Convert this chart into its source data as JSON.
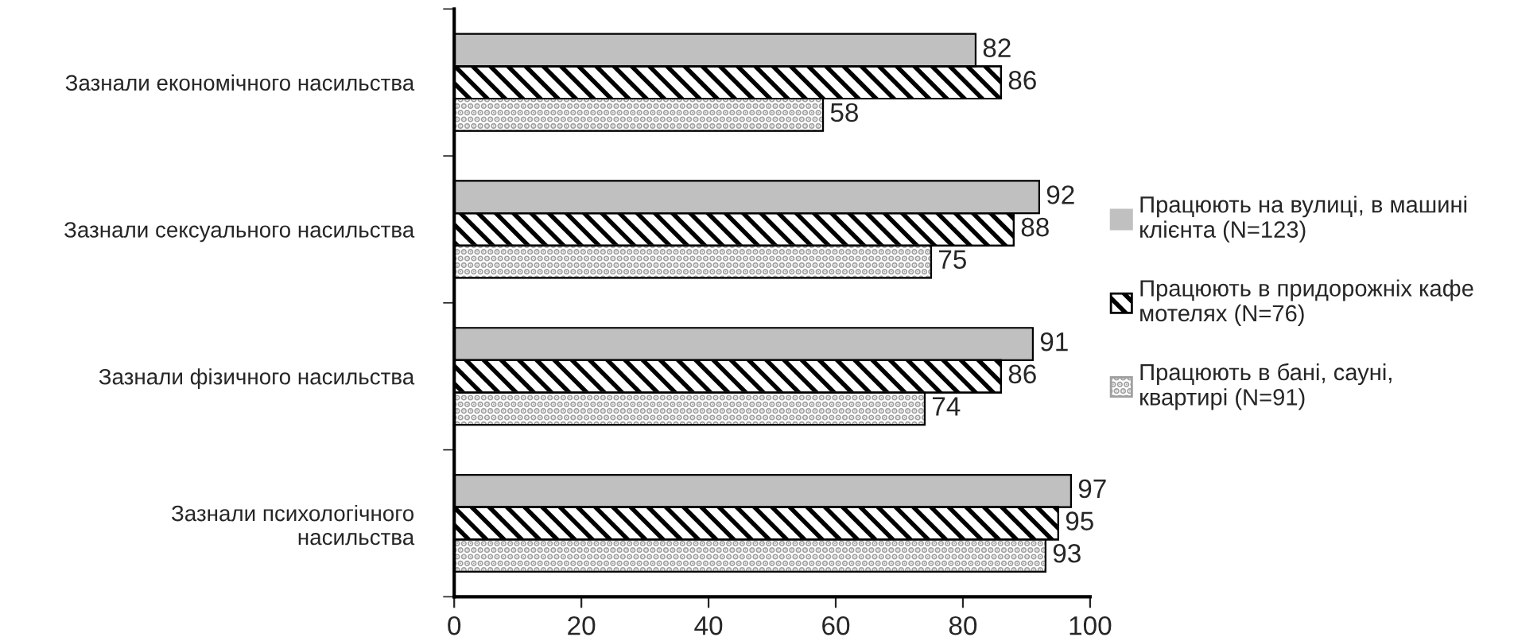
{
  "chart_data": {
    "type": "bar",
    "orientation": "horizontal",
    "categories": [
      "Зазнали економічного насильства",
      "Зазнали сексуального насильства",
      "Зазнали фізичного насильства",
      "Зазнали психологічного\nнасильства"
    ],
    "series": [
      {
        "name": "Працюють на вулиці, в машині\nклієнта (N=123)",
        "color": "#c0c0c0",
        "values": [
          82,
          92,
          91,
          97
        ]
      },
      {
        "name": "Працюють в придорожніх кафе\nмотелях (N=76)",
        "color": "#000000",
        "values": [
          86,
          88,
          86,
          95
        ]
      },
      {
        "name": "Працюють в бані, сауні,\nквартирі (N=91)",
        "color": "#a0a0a0",
        "values": [
          58,
          75,
          74,
          93
        ]
      }
    ],
    "xlim": [
      0,
      100
    ],
    "xticks": [
      0,
      20,
      40,
      60,
      80,
      100
    ],
    "data_labels": true,
    "grid": false,
    "legend": "right"
  }
}
